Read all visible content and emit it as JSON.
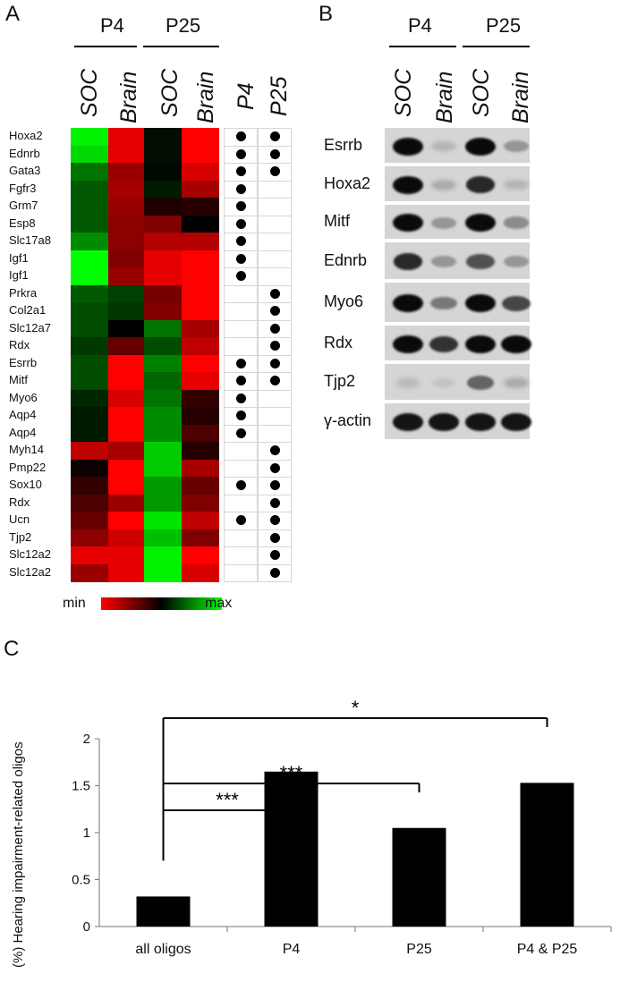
{
  "panelA": {
    "letter": "A",
    "group_labels": [
      "P4",
      "P25"
    ],
    "column_labels": [
      "SOC",
      "Brain",
      "SOC",
      "Brain"
    ],
    "marker_labels": [
      "P4",
      "P25"
    ],
    "legend": {
      "min": "min",
      "max": "max",
      "colors": [
        "#ff0000",
        "#000000",
        "#00ff00"
      ]
    },
    "genes": [
      "Hoxa2",
      "Ednrb",
      "Gata3",
      "Fgfr3",
      "Grm7",
      "Esp8",
      "Slc17a8",
      "Igf1",
      "Igf1",
      "Prkra",
      "Col2a1",
      "Slc12a7",
      "Rdx",
      "Esrrb",
      "Mitf",
      "Myo6",
      "Aqp4",
      "Aqp4",
      "Myh14",
      "Pmp22",
      "Sox10",
      "Rdx",
      "Ucn",
      "Tjp2",
      "Slc12a2",
      "Slc12a2"
    ],
    "heat_values": [
      [
        0.95,
        -0.9,
        0.05,
        -1.0
      ],
      [
        0.85,
        -0.9,
        0.05,
        -1.0
      ],
      [
        0.45,
        -0.6,
        0.03,
        -0.85
      ],
      [
        0.35,
        -0.65,
        0.1,
        -0.65
      ],
      [
        0.35,
        -0.6,
        -0.12,
        -0.15
      ],
      [
        0.35,
        -0.55,
        -0.5,
        0.0
      ],
      [
        0.55,
        -0.55,
        -0.7,
        -0.7
      ],
      [
        1.0,
        -0.5,
        -0.9,
        -1.0
      ],
      [
        1.0,
        -0.6,
        -0.9,
        -1.0
      ],
      [
        0.35,
        0.25,
        -0.45,
        -1.0
      ],
      [
        0.3,
        0.22,
        -0.5,
        -1.0
      ],
      [
        0.3,
        0.0,
        0.45,
        -0.65
      ],
      [
        0.22,
        -0.4,
        0.3,
        -0.75
      ],
      [
        0.3,
        -1.0,
        0.5,
        -1.0
      ],
      [
        0.3,
        -1.0,
        0.4,
        -0.9
      ],
      [
        0.15,
        -0.85,
        0.45,
        -0.2
      ],
      [
        0.1,
        -1.0,
        0.55,
        -0.15
      ],
      [
        0.1,
        -1.0,
        0.55,
        -0.3
      ],
      [
        -0.75,
        -0.65,
        0.8,
        -0.15
      ],
      [
        -0.05,
        -1.0,
        0.8,
        -0.65
      ],
      [
        -0.2,
        -1.0,
        0.6,
        -0.4
      ],
      [
        -0.3,
        -0.6,
        0.6,
        -0.5
      ],
      [
        -0.4,
        -1.0,
        0.9,
        -0.75
      ],
      [
        -0.55,
        -0.8,
        0.75,
        -0.5
      ],
      [
        -0.9,
        -0.9,
        0.95,
        -1.0
      ],
      [
        -0.6,
        -0.9,
        0.95,
        -0.85
      ]
    ],
    "dots_p4": [
      1,
      1,
      1,
      1,
      1,
      1,
      1,
      1,
      1,
      0,
      0,
      0,
      0,
      1,
      1,
      1,
      1,
      1,
      0,
      0,
      1,
      0,
      1,
      0,
      0,
      0
    ],
    "dots_p25": [
      1,
      1,
      1,
      0,
      0,
      0,
      0,
      0,
      0,
      1,
      1,
      1,
      1,
      1,
      1,
      0,
      0,
      0,
      1,
      1,
      1,
      1,
      1,
      1,
      1,
      1
    ]
  },
  "panelB": {
    "letter": "B",
    "group_labels": [
      "P4",
      "P25"
    ],
    "column_labels": [
      "SOC",
      "Brain",
      "SOC",
      "Brain"
    ],
    "rows": [
      {
        "label": "Esrrb",
        "intensity": [
          1.0,
          0.15,
          1.0,
          0.3
        ]
      },
      {
        "label": "Hoxa2",
        "intensity": [
          1.0,
          0.2,
          0.85,
          0.15
        ]
      },
      {
        "label": "Mitf",
        "intensity": [
          1.0,
          0.3,
          1.0,
          0.35
        ]
      },
      {
        "label": "Ednrb",
        "intensity": [
          0.85,
          0.3,
          0.65,
          0.3
        ]
      },
      {
        "label": "Myo6",
        "intensity": [
          1.0,
          0.45,
          1.0,
          0.7
        ]
      },
      {
        "label": "Rdx",
        "intensity": [
          1.0,
          0.8,
          1.0,
          1.0
        ]
      },
      {
        "label": "Tjp2",
        "intensity": [
          0.12,
          0.08,
          0.55,
          0.2
        ]
      },
      {
        "label": "γ-actin",
        "intensity": [
          0.95,
          0.95,
          0.95,
          0.95
        ]
      }
    ]
  },
  "panelC": {
    "letter": "C",
    "significance": [
      "***",
      "***",
      "*"
    ]
  },
  "chart_data": {
    "type": "bar",
    "categories": [
      "all oligos",
      "P4",
      "P25",
      "P4 & P25"
    ],
    "values": [
      0.32,
      1.65,
      1.05,
      1.53
    ],
    "ylabel": "(%) Hearing impairment-related oligos",
    "xlabel": "",
    "ylim": [
      0,
      2
    ],
    "yticks": [
      "0",
      "0.5",
      "1",
      "1.5",
      "2"
    ],
    "grid": false,
    "bar_color": "#000000"
  }
}
